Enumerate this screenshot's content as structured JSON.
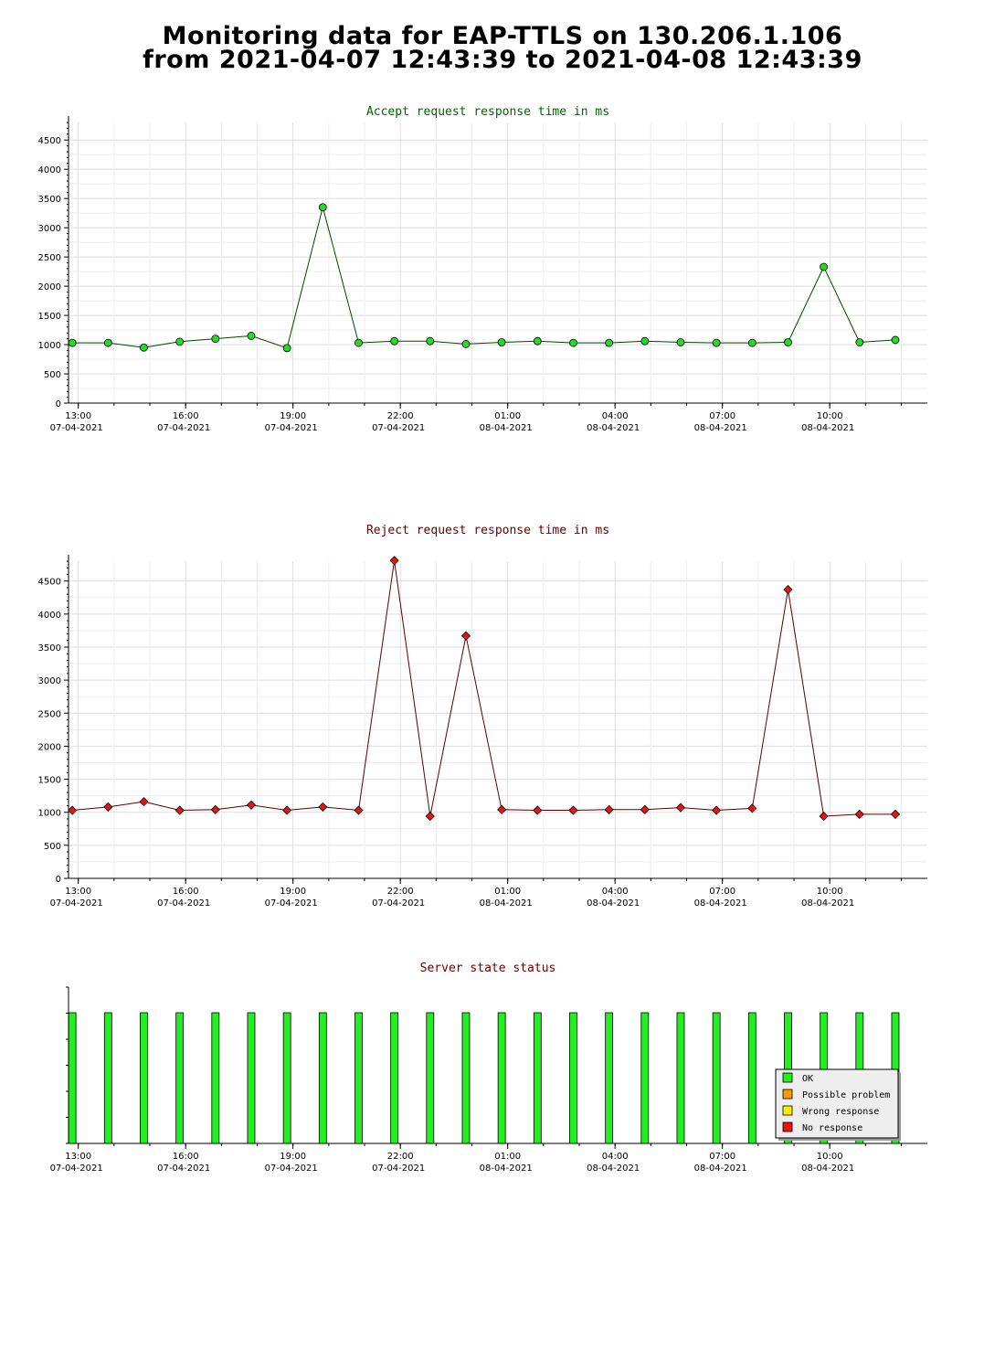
{
  "page": {
    "title_line1": "Monitoring data for EAP-TTLS on 130.206.1.106",
    "title_line2": "from 2021-04-07 12:43:39 to 2021-04-08 12:43:39"
  },
  "colors": {
    "accept_line": "#004400",
    "accept_marker": "#22dd22",
    "accept_title": "#006600",
    "reject_line": "#550000",
    "reject_marker": "#ee1111",
    "reject_title": "#660000",
    "status_title": "#660000",
    "ok": "#22ee22",
    "possible_problem": "#ff9900",
    "wrong_response": "#ffee00",
    "no_response": "#ee1111",
    "grid": "#dddddd"
  },
  "x_ticks": [
    {
      "time": "13:00",
      "date": "07-04-2021"
    },
    {
      "time": "16:00",
      "date": "07-04-2021"
    },
    {
      "time": "19:00",
      "date": "07-04-2021"
    },
    {
      "time": "22:00",
      "date": "07-04-2021"
    },
    {
      "time": "01:00",
      "date": "08-04-2021"
    },
    {
      "time": "04:00",
      "date": "08-04-2021"
    },
    {
      "time": "07:00",
      "date": "08-04-2021"
    },
    {
      "time": "10:00",
      "date": "08-04-2021"
    }
  ],
  "chart_data": [
    {
      "type": "line",
      "title": "Accept request response time in ms",
      "x_start": "2021-04-07 12:43:39",
      "x_end": "2021-04-08 12:43:39",
      "ylim": [
        0,
        4800
      ],
      "yticks": [
        0,
        500,
        1000,
        1500,
        2000,
        2500,
        3000,
        3500,
        4000,
        4500
      ],
      "grid": true,
      "x": [
        "12:50",
        "13:50",
        "14:50",
        "15:50",
        "16:50",
        "17:50",
        "18:50",
        "19:50",
        "20:50",
        "21:50",
        "22:50",
        "23:50",
        "00:50",
        "01:50",
        "02:50",
        "03:50",
        "04:50",
        "05:50",
        "06:50",
        "07:50",
        "08:50",
        "09:50",
        "10:50",
        "11:50"
      ],
      "values": [
        1030,
        1030,
        950,
        1050,
        1100,
        1150,
        940,
        3350,
        1030,
        1060,
        1060,
        1010,
        1040,
        1060,
        1030,
        1030,
        1060,
        1040,
        1030,
        1030,
        1040,
        2330,
        1040,
        1080
      ]
    },
    {
      "type": "line",
      "title": "Reject request response time in ms",
      "x_start": "2021-04-07 12:43:39",
      "x_end": "2021-04-08 12:43:39",
      "ylim": [
        0,
        4800
      ],
      "yticks": [
        0,
        500,
        1000,
        1500,
        2000,
        2500,
        3000,
        3500,
        4000,
        4500
      ],
      "grid": true,
      "x": [
        "12:50",
        "13:50",
        "14:50",
        "15:50",
        "16:50",
        "17:50",
        "18:50",
        "19:50",
        "20:50",
        "21:50",
        "22:50",
        "23:50",
        "00:50",
        "01:50",
        "02:50",
        "03:50",
        "04:50",
        "05:50",
        "06:50",
        "07:50",
        "08:50",
        "09:50",
        "10:50",
        "11:50"
      ],
      "values": [
        1030,
        1080,
        1160,
        1030,
        1040,
        1110,
        1030,
        1080,
        1030,
        4810,
        940,
        3670,
        1040,
        1030,
        1030,
        1040,
        1040,
        1070,
        1030,
        1060,
        4370,
        940,
        970,
        970
      ]
    },
    {
      "type": "bar",
      "title": "Server state status",
      "x": [
        "12:50",
        "13:50",
        "14:50",
        "15:50",
        "16:50",
        "17:50",
        "18:50",
        "19:50",
        "20:50",
        "21:50",
        "22:50",
        "23:50",
        "00:50",
        "01:50",
        "02:50",
        "03:50",
        "04:50",
        "05:50",
        "06:50",
        "07:50",
        "08:50",
        "09:50",
        "10:50",
        "11:50"
      ],
      "states": [
        "OK",
        "OK",
        "OK",
        "OK",
        "OK",
        "OK",
        "OK",
        "OK",
        "OK",
        "OK",
        "OK",
        "OK",
        "OK",
        "OK",
        "OK",
        "OK",
        "OK",
        "OK",
        "OK",
        "OK",
        "OK",
        "OK",
        "OK",
        "OK"
      ],
      "legend": [
        "OK",
        "Possible problem",
        "Wrong response",
        "No response"
      ],
      "legend_position": "bottom-right"
    }
  ]
}
